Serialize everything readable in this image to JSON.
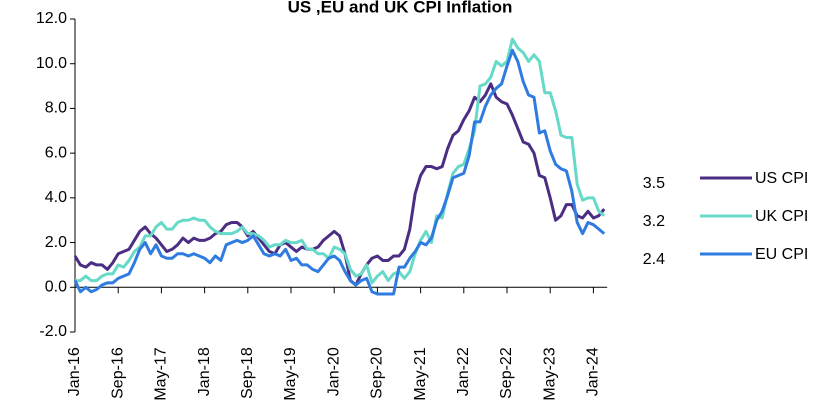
{
  "chart_data": {
    "type": "line",
    "title": "US ,EU and UK CPI Inflation",
    "categories": [
      "Jan-16",
      null,
      null,
      null,
      null,
      null,
      null,
      null,
      "Sep-16",
      null,
      null,
      null,
      null,
      null,
      null,
      null,
      "May-17",
      null,
      null,
      null,
      null,
      null,
      null,
      null,
      "Jan-18",
      null,
      null,
      null,
      null,
      null,
      null,
      null,
      "Sep-18",
      null,
      null,
      null,
      null,
      null,
      null,
      null,
      "May-19",
      null,
      null,
      null,
      null,
      null,
      null,
      null,
      "Jan-20",
      null,
      null,
      null,
      null,
      null,
      null,
      null,
      "Sep-20",
      null,
      null,
      null,
      null,
      null,
      null,
      null,
      "May-21",
      null,
      null,
      null,
      null,
      null,
      null,
      null,
      "Jan-22",
      null,
      null,
      null,
      null,
      null,
      null,
      null,
      "Sep-22",
      null,
      null,
      null,
      null,
      null,
      null,
      null,
      "May-23",
      null,
      null,
      null,
      null,
      null,
      null,
      null,
      "Jan-24",
      null,
      null
    ],
    "series": [
      {
        "name": "US CPI",
        "color": "#4b2e83",
        "values": [
          1.4,
          1.0,
          0.9,
          1.1,
          1.0,
          1.0,
          0.8,
          1.1,
          1.5,
          1.6,
          1.7,
          2.1,
          2.5,
          2.7,
          2.4,
          2.2,
          1.9,
          1.6,
          1.7,
          1.9,
          2.2,
          2.0,
          2.2,
          2.1,
          2.1,
          2.2,
          2.4,
          2.5,
          2.8,
          2.9,
          2.9,
          2.7,
          2.3,
          2.5,
          2.2,
          1.9,
          1.6,
          1.5,
          1.9,
          2.0,
          1.8,
          1.6,
          1.8,
          1.7,
          1.7,
          1.8,
          2.1,
          2.3,
          2.5,
          2.3,
          1.5,
          0.3,
          0.1,
          0.6,
          1.0,
          1.3,
          1.4,
          1.2,
          1.2,
          1.4,
          1.4,
          1.7,
          2.6,
          4.2,
          5.0,
          5.4,
          5.4,
          5.3,
          5.4,
          6.2,
          6.8,
          7.0,
          7.5,
          7.9,
          8.5,
          8.3,
          8.6,
          9.1,
          8.5,
          8.3,
          8.2,
          7.7,
          7.1,
          6.5,
          6.4,
          6.0,
          5.0,
          4.9,
          4.0,
          3.0,
          3.2,
          3.7,
          3.7,
          3.2,
          3.1,
          3.4,
          3.1,
          3.2,
          3.5
        ]
      },
      {
        "name": "UK CPI",
        "color": "#66d9c8",
        "values": [
          0.3,
          0.3,
          0.5,
          0.3,
          0.3,
          0.5,
          0.6,
          0.6,
          1.0,
          0.9,
          1.2,
          1.6,
          1.8,
          2.3,
          2.3,
          2.7,
          2.9,
          2.6,
          2.6,
          2.9,
          3.0,
          3.0,
          3.1,
          3.0,
          3.0,
          2.7,
          2.5,
          2.4,
          2.4,
          2.4,
          2.5,
          2.7,
          2.4,
          2.4,
          2.3,
          2.1,
          1.8,
          1.9,
          1.9,
          2.1,
          2.0,
          2.0,
          2.1,
          1.7,
          1.7,
          1.5,
          1.5,
          1.3,
          1.8,
          1.7,
          1.5,
          0.8,
          0.5,
          0.6,
          1.0,
          0.2,
          0.5,
          0.7,
          0.3,
          0.6,
          0.7,
          0.4,
          0.7,
          1.5,
          2.1,
          2.5,
          2.0,
          3.2,
          3.1,
          4.2,
          5.1,
          5.4,
          5.5,
          6.2,
          7.0,
          9.0,
          9.1,
          9.4,
          10.1,
          9.9,
          10.1,
          11.1,
          10.7,
          10.5,
          10.1,
          10.4,
          10.1,
          8.7,
          8.7,
          7.9,
          6.8,
          6.7,
          6.7,
          4.6,
          3.9,
          4.0,
          4.0,
          3.4,
          3.2
        ]
      },
      {
        "name": "EU CPI",
        "color": "#2f7be0",
        "values": [
          0.3,
          -0.2,
          0.0,
          -0.2,
          -0.1,
          0.1,
          0.2,
          0.2,
          0.4,
          0.5,
          0.6,
          1.1,
          1.7,
          2.0,
          1.5,
          1.9,
          1.4,
          1.3,
          1.3,
          1.5,
          1.5,
          1.4,
          1.5,
          1.4,
          1.3,
          1.1,
          1.4,
          1.2,
          1.9,
          2.0,
          2.1,
          2.0,
          2.1,
          2.3,
          1.9,
          1.5,
          1.4,
          1.5,
          1.4,
          1.7,
          1.2,
          1.3,
          1.0,
          1.0,
          0.8,
          0.7,
          1.0,
          1.3,
          1.4,
          1.2,
          0.7,
          0.3,
          0.1,
          0.3,
          0.4,
          -0.2,
          -0.3,
          -0.3,
          -0.3,
          -0.3,
          0.9,
          0.9,
          1.3,
          1.6,
          2.0,
          1.9,
          2.2,
          3.0,
          3.4,
          4.1,
          4.9,
          5.0,
          5.1,
          5.9,
          7.4,
          7.4,
          8.1,
          8.6,
          8.9,
          9.1,
          9.9,
          10.6,
          10.1,
          9.2,
          8.6,
          8.5,
          6.9,
          7.0,
          6.1,
          5.5,
          5.3,
          5.2,
          4.3,
          2.9,
          2.4,
          2.9,
          2.8,
          2.6,
          2.4
        ]
      }
    ],
    "ylim": [
      -2,
      12
    ],
    "yticks": [
      {
        "value": -2,
        "label": "-2.0"
      },
      {
        "value": 0,
        "label": "0.0"
      },
      {
        "value": 2,
        "label": "2.0"
      },
      {
        "value": 4,
        "label": "4.0"
      },
      {
        "value": 6,
        "label": "6.0"
      },
      {
        "value": 8,
        "label": "8.0"
      },
      {
        "value": 10,
        "label": "10.0"
      },
      {
        "value": 12,
        "label": "12.0"
      }
    ]
  }
}
